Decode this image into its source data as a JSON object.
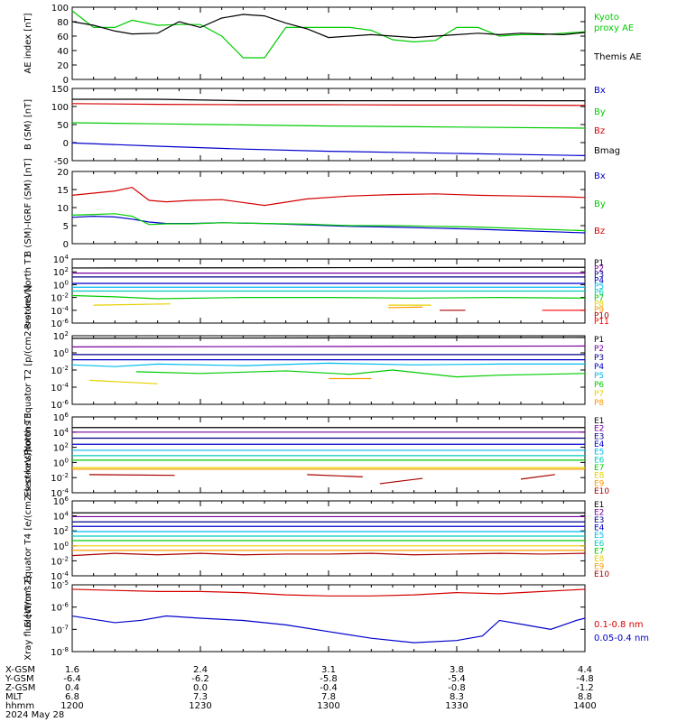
{
  "footer": {
    "row_labels": [
      "X-GSM",
      "Y-GSM",
      "Z-GSM",
      "MLT",
      "hhmm",
      "2024 May 28"
    ],
    "columns": [
      [
        "1.6",
        "-6.4",
        "0.4",
        "6.8",
        "1200"
      ],
      [
        "2.4",
        "-6.2",
        "0.0",
        "7.3",
        "1230"
      ],
      [
        "3.1",
        "-5.8",
        "-0.4",
        "7.8",
        "1300"
      ],
      [
        "3.8",
        "-5.4",
        "-0.8",
        "8.3",
        "1330"
      ],
      [
        "4.4",
        "-4.8",
        "-1.2",
        "8.8",
        "1400"
      ]
    ]
  },
  "colors": {
    "black": "#000000",
    "red": "#d40000",
    "green": "#00cc00",
    "blue": "#0000cc",
    "purple": "#7a00a0",
    "navy": "#000088",
    "cyan": "#00bbee",
    "teal": "#00ccbb",
    "yellow": "#e6d200",
    "orange": "#ff9900",
    "darkred": "#aa0000",
    "brightred": "#ff0000"
  },
  "chart_data": [
    {
      "type": "line",
      "id": "ae",
      "ylabel": "AE index [nT]",
      "ylim": [
        0,
        100
      ],
      "yticks": [
        "0",
        "20",
        "40",
        "60",
        "80",
        "100"
      ],
      "x": [
        0,
        5,
        10,
        14,
        20,
        25,
        30,
        35,
        40,
        45,
        50,
        55,
        60,
        65,
        70,
        75,
        80,
        85,
        90,
        95,
        100,
        105,
        110,
        115,
        120
      ],
      "series": [
        {
          "name": "Kyoto proxy AE",
          "color": "green",
          "values": [
            95,
            72,
            72,
            82,
            75,
            76,
            76,
            60,
            30,
            30,
            72,
            72,
            72,
            72,
            68,
            55,
            52,
            54,
            72,
            72,
            60,
            62,
            62,
            64,
            66
          ]
        },
        {
          "name": "Themis AE",
          "color": "black",
          "values": [
            80,
            75,
            67,
            63,
            64,
            80,
            72,
            85,
            90,
            88,
            78,
            70,
            58,
            60,
            62,
            60,
            58,
            60,
            62,
            64,
            62,
            64,
            63,
            62,
            65
          ]
        }
      ]
    },
    {
      "type": "line",
      "id": "bsm",
      "ylabel": "B (SM) [nT]",
      "ylim": [
        -50,
        150
      ],
      "yticks": [
        "-50",
        "0",
        "50",
        "100",
        "150"
      ],
      "x": [
        0,
        20,
        40,
        60,
        80,
        100,
        120
      ],
      "series": [
        {
          "name": "Bx",
          "color": "blue",
          "values": [
            -1,
            -10,
            -18,
            -24,
            -28,
            -32,
            -36
          ]
        },
        {
          "name": "By",
          "color": "green",
          "values": [
            55,
            52,
            49,
            46,
            44,
            42,
            40
          ]
        },
        {
          "name": "Bz",
          "color": "red",
          "values": [
            108,
            106,
            105,
            105,
            104,
            104,
            103
          ]
        },
        {
          "name": "Bmag",
          "color": "black",
          "values": [
            120,
            120,
            116,
            116,
            116,
            116,
            116
          ]
        }
      ]
    },
    {
      "type": "line",
      "id": "digrf",
      "ylabel": "B (SM)-IGRF (SM) [nT]",
      "ylim": [
        0,
        20
      ],
      "yticks": [
        "0",
        "5",
        "10",
        "15",
        "20"
      ],
      "x": [
        0,
        5,
        10,
        14,
        18,
        22,
        28,
        35,
        45,
        55,
        65,
        75,
        85,
        95,
        105,
        115,
        120
      ],
      "series": [
        {
          "name": "Bx",
          "color": "blue",
          "values": [
            7.3,
            7.6,
            7.4,
            6.8,
            6.0,
            5.6,
            5.6,
            5.8,
            5.6,
            5.2,
            4.8,
            4.6,
            4.3,
            4.0,
            3.6,
            3.2,
            3.0
          ]
        },
        {
          "name": "By",
          "color": "green",
          "values": [
            7.9,
            8.1,
            8.3,
            7.6,
            5.3,
            5.5,
            5.5,
            5.8,
            5.6,
            5.4,
            5.0,
            5.0,
            4.8,
            4.6,
            4.2,
            3.8,
            3.6
          ]
        },
        {
          "name": "Bz",
          "color": "red",
          "values": [
            13.4,
            14.0,
            14.6,
            15.6,
            12.0,
            11.6,
            12.0,
            12.2,
            10.6,
            12.4,
            13.2,
            13.6,
            13.8,
            13.4,
            13.2,
            13.0,
            12.8
          ]
        }
      ]
    },
    {
      "type": "line",
      "id": "pn",
      "ylabel": "Protons North T1",
      "scale": "log",
      "ylim": [
        -6,
        4
      ],
      "yticks": [
        "10^-6",
        "10^-4",
        "10^-2",
        "10^0",
        "10^2",
        "10^4"
      ],
      "series": [
        {
          "name": "P1",
          "color": "black",
          "x": [
            0,
            120
          ],
          "values": [
            2.6,
            2.7
          ]
        },
        {
          "name": "P2",
          "color": "purple",
          "x": [
            0,
            120
          ],
          "values": [
            1.8,
            1.8
          ]
        },
        {
          "name": "P3",
          "color": "navy",
          "x": [
            0,
            120
          ],
          "values": [
            1.2,
            1.2
          ]
        },
        {
          "name": "P4",
          "color": "blue",
          "x": [
            0,
            120
          ],
          "values": [
            0.2,
            0.2
          ]
        },
        {
          "name": "P5",
          "color": "cyan",
          "x": [
            0,
            120
          ],
          "values": [
            -0.4,
            -0.4
          ]
        },
        {
          "name": "P6",
          "color": "teal",
          "x": [
            0,
            120
          ],
          "values": [
            -1.0,
            -1.0
          ]
        },
        {
          "name": "P7",
          "color": "green",
          "x": [
            0,
            10,
            20,
            40,
            60,
            80,
            100,
            120
          ],
          "values": [
            -1.7,
            -1.9,
            -2.2,
            -2.0,
            -2.0,
            -2.1,
            -2.0,
            -2.1
          ]
        },
        {
          "name": "P8",
          "color": "yellow",
          "x": [
            5,
            23,
            60,
            85
          ],
          "values": [
            -3.2,
            -3.0,
            -3.1,
            -2.6
          ],
          "segments": [
            [
              5,
              23
            ],
            [
              74,
              84
            ]
          ]
        },
        {
          "name": "P9",
          "color": "orange",
          "x": [
            74,
            82
          ],
          "values": [
            -3.6,
            -3.5
          ]
        },
        {
          "name": "P10",
          "color": "darkred",
          "x": [
            86,
            92
          ],
          "values": [
            -4.0,
            -4.0
          ]
        },
        {
          "name": "P11",
          "color": "brightred",
          "x": [
            110,
            120
          ],
          "values": [
            -4.0,
            -4.0
          ]
        }
      ]
    },
    {
      "type": "line",
      "id": "pe",
      "ylabel": "Protons Equator T2 [p/(cm2-s-sr-keV)]",
      "scale": "log",
      "ylim": [
        -6,
        2
      ],
      "yticks": [
        "10^-6",
        "10^-4",
        "10^-2",
        "10^0",
        "10^2"
      ],
      "series": [
        {
          "name": "P1",
          "color": "black",
          "x": [
            0,
            120
          ],
          "values": [
            1.7,
            1.8
          ]
        },
        {
          "name": "P2",
          "color": "purple",
          "x": [
            0,
            120
          ],
          "values": [
            0.7,
            0.8
          ]
        },
        {
          "name": "P3",
          "color": "navy",
          "x": [
            0,
            120
          ],
          "values": [
            -0.2,
            -0.2
          ]
        },
        {
          "name": "P4",
          "color": "blue",
          "x": [
            0,
            120
          ],
          "values": [
            -0.8,
            -0.8
          ]
        },
        {
          "name": "P5",
          "color": "cyan",
          "x": [
            0,
            10,
            20,
            40,
            60,
            80,
            100,
            120
          ],
          "values": [
            -1.4,
            -1.6,
            -1.3,
            -1.5,
            -1.2,
            -1.4,
            -1.3,
            -1.3
          ]
        },
        {
          "name": "P6",
          "color": "green",
          "x": [
            15,
            30,
            50,
            65,
            75,
            90,
            100,
            120
          ],
          "values": [
            -2.2,
            -2.4,
            -2.1,
            -2.5,
            -2.0,
            -2.8,
            -2.6,
            -2.4
          ]
        },
        {
          "name": "P7",
          "color": "yellow",
          "x": [
            4,
            20
          ],
          "values": [
            -3.2,
            -3.6
          ]
        },
        {
          "name": "P8",
          "color": "orange",
          "x": [
            60,
            70
          ],
          "values": [
            -3.0,
            -3.0
          ]
        }
      ]
    },
    {
      "type": "line",
      "id": "en",
      "ylabel": "Electrons North T3",
      "scale": "log",
      "ylim": [
        -4,
        6
      ],
      "yticks": [
        "10^-4",
        "10^-2",
        "10^0",
        "10^2",
        "10^4",
        "10^6"
      ],
      "series": [
        {
          "name": "E1",
          "color": "black",
          "x": [
            0,
            120
          ],
          "values": [
            4.6,
            4.6
          ]
        },
        {
          "name": "E2",
          "color": "purple",
          "x": [
            0,
            120
          ],
          "values": [
            4.0,
            4.0
          ]
        },
        {
          "name": "E3",
          "color": "navy",
          "x": [
            0,
            120
          ],
          "values": [
            3.2,
            3.2
          ]
        },
        {
          "name": "E4",
          "color": "blue",
          "x": [
            0,
            120
          ],
          "values": [
            2.4,
            2.4
          ]
        },
        {
          "name": "E5",
          "color": "cyan",
          "x": [
            0,
            120
          ],
          "values": [
            1.6,
            1.6
          ]
        },
        {
          "name": "E6",
          "color": "teal",
          "x": [
            0,
            120
          ],
          "values": [
            0.9,
            0.9
          ]
        },
        {
          "name": "E7",
          "color": "green",
          "x": [
            0,
            120
          ],
          "values": [
            0.3,
            0.3
          ]
        },
        {
          "name": "E8",
          "color": "yellow",
          "x": [
            0,
            120
          ],
          "values": [
            -0.7,
            -0.7
          ]
        },
        {
          "name": "E9",
          "color": "orange",
          "x": [
            0,
            120
          ],
          "values": [
            -0.9,
            -0.9
          ]
        },
        {
          "name": "E10",
          "color": "darkred",
          "x": [
            4,
            24,
            55,
            68,
            72,
            82,
            105,
            113
          ],
          "values": [
            -1.6,
            -1.7,
            -1.6,
            -1.9,
            -2.8,
            -2.1,
            -2.2,
            -1.6
          ],
          "segments": [
            [
              4,
              24
            ],
            [
              55,
              68
            ],
            [
              72,
              82
            ],
            [
              105,
              113
            ]
          ]
        }
      ]
    },
    {
      "type": "line",
      "id": "ee",
      "ylabel": "Electrons Equator T4 [e/(cm2-s-sr-keV)]",
      "scale": "log",
      "ylim": [
        -4,
        6
      ],
      "yticks": [
        "10^-4",
        "10^-2",
        "10^0",
        "10^2",
        "10^4",
        "10^6"
      ],
      "series": [
        {
          "name": "E1",
          "color": "black",
          "x": [
            0,
            120
          ],
          "values": [
            4.4,
            4.4
          ]
        },
        {
          "name": "E2",
          "color": "purple",
          "x": [
            0,
            120
          ],
          "values": [
            3.9,
            3.9
          ]
        },
        {
          "name": "E3",
          "color": "navy",
          "x": [
            0,
            120
          ],
          "values": [
            3.2,
            3.2
          ]
        },
        {
          "name": "E4",
          "color": "blue",
          "x": [
            0,
            120
          ],
          "values": [
            2.6,
            2.6
          ]
        },
        {
          "name": "E5",
          "color": "cyan",
          "x": [
            0,
            120
          ],
          "values": [
            1.9,
            1.9
          ]
        },
        {
          "name": "E6",
          "color": "teal",
          "x": [
            0,
            120
          ],
          "values": [
            1.3,
            1.3
          ]
        },
        {
          "name": "E7",
          "color": "green",
          "x": [
            0,
            120
          ],
          "values": [
            0.7,
            0.7
          ]
        },
        {
          "name": "E8",
          "color": "yellow",
          "x": [
            0,
            120
          ],
          "values": [
            0.0,
            0.0
          ]
        },
        {
          "name": "E9",
          "color": "orange",
          "x": [
            0,
            120
          ],
          "values": [
            -0.6,
            -0.6
          ]
        },
        {
          "name": "E10",
          "color": "darkred",
          "x": [
            0,
            10,
            20,
            30,
            40,
            50,
            60,
            70,
            80,
            90,
            100,
            110,
            120
          ],
          "values": [
            -1.3,
            -1.0,
            -1.2,
            -1.0,
            -1.2,
            -1.1,
            -1.1,
            -1.0,
            -1.2,
            -1.1,
            -1.0,
            -1.1,
            -1.0
          ]
        }
      ]
    },
    {
      "type": "line",
      "id": "xray",
      "ylabel": "Xray flux [W/m^2]",
      "scale": "log",
      "ylim": [
        -8,
        -5
      ],
      "yticks": [
        "10^-8",
        "10^-7",
        "10^-6",
        "10^-5"
      ],
      "series": [
        {
          "name": "0.1-0.8 nm",
          "color": "red",
          "x": [
            0,
            10,
            20,
            30,
            40,
            50,
            60,
            70,
            80,
            90,
            100,
            110,
            120
          ],
          "values": [
            -5.2,
            -5.25,
            -5.3,
            -5.3,
            -5.35,
            -5.45,
            -5.5,
            -5.5,
            -5.45,
            -5.35,
            -5.4,
            -5.3,
            -5.2
          ]
        },
        {
          "name": "0.05-0.4 nm",
          "color": "blue",
          "x": [
            0,
            10,
            16,
            22,
            30,
            40,
            50,
            60,
            70,
            80,
            90,
            96,
            100,
            106,
            112,
            118,
            120
          ],
          "values": [
            -6.4,
            -6.7,
            -6.6,
            -6.4,
            -6.5,
            -6.6,
            -6.8,
            -7.1,
            -7.4,
            -7.6,
            -7.5,
            -7.3,
            -6.6,
            -6.8,
            -7.0,
            -6.6,
            -6.5
          ]
        }
      ]
    }
  ]
}
